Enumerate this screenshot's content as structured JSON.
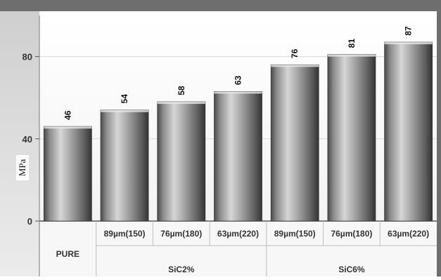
{
  "chart_data": {
    "type": "bar",
    "categories": [
      "PURE",
      "89µm(150)",
      "76µm(180)",
      "63µm(220)",
      "89µm(150)",
      "76µm(180)",
      "63µm(220)"
    ],
    "groups": [
      {
        "label": "PURE",
        "categories": [
          "PURE"
        ]
      },
      {
        "label": "SiC2%",
        "categories": [
          "89µm(150)",
          "76µm(180)",
          "63µm(220)"
        ]
      },
      {
        "label": "SiC6%",
        "categories": [
          "89µm(150)",
          "76µm(180)",
          "63µm(220)"
        ]
      }
    ],
    "values": [
      46,
      54,
      58,
      63,
      76,
      81,
      87
    ],
    "data_labels": [
      "46",
      "54",
      "58",
      "63",
      "76",
      "81",
      "87"
    ],
    "ylabel": "MPa",
    "xlabel": "",
    "title": "",
    "ylim": [
      0,
      100
    ],
    "yticks": [
      0,
      40,
      80
    ],
    "ytick_labels": [
      "0",
      "40",
      "80"
    ],
    "grid": true,
    "legend": "none",
    "colors": {
      "bar_light": "#d8d8d8",
      "bar_mid": "#8a8a8a",
      "bar_dark": "#3c3c3c",
      "plot_bg_top": "#ffffff",
      "plot_bg_bottom": "#f2f2f2",
      "axis_panel": "#e3e3e3",
      "frame_dark": "#6b6b6b",
      "grid": "#d9d9d9"
    }
  }
}
